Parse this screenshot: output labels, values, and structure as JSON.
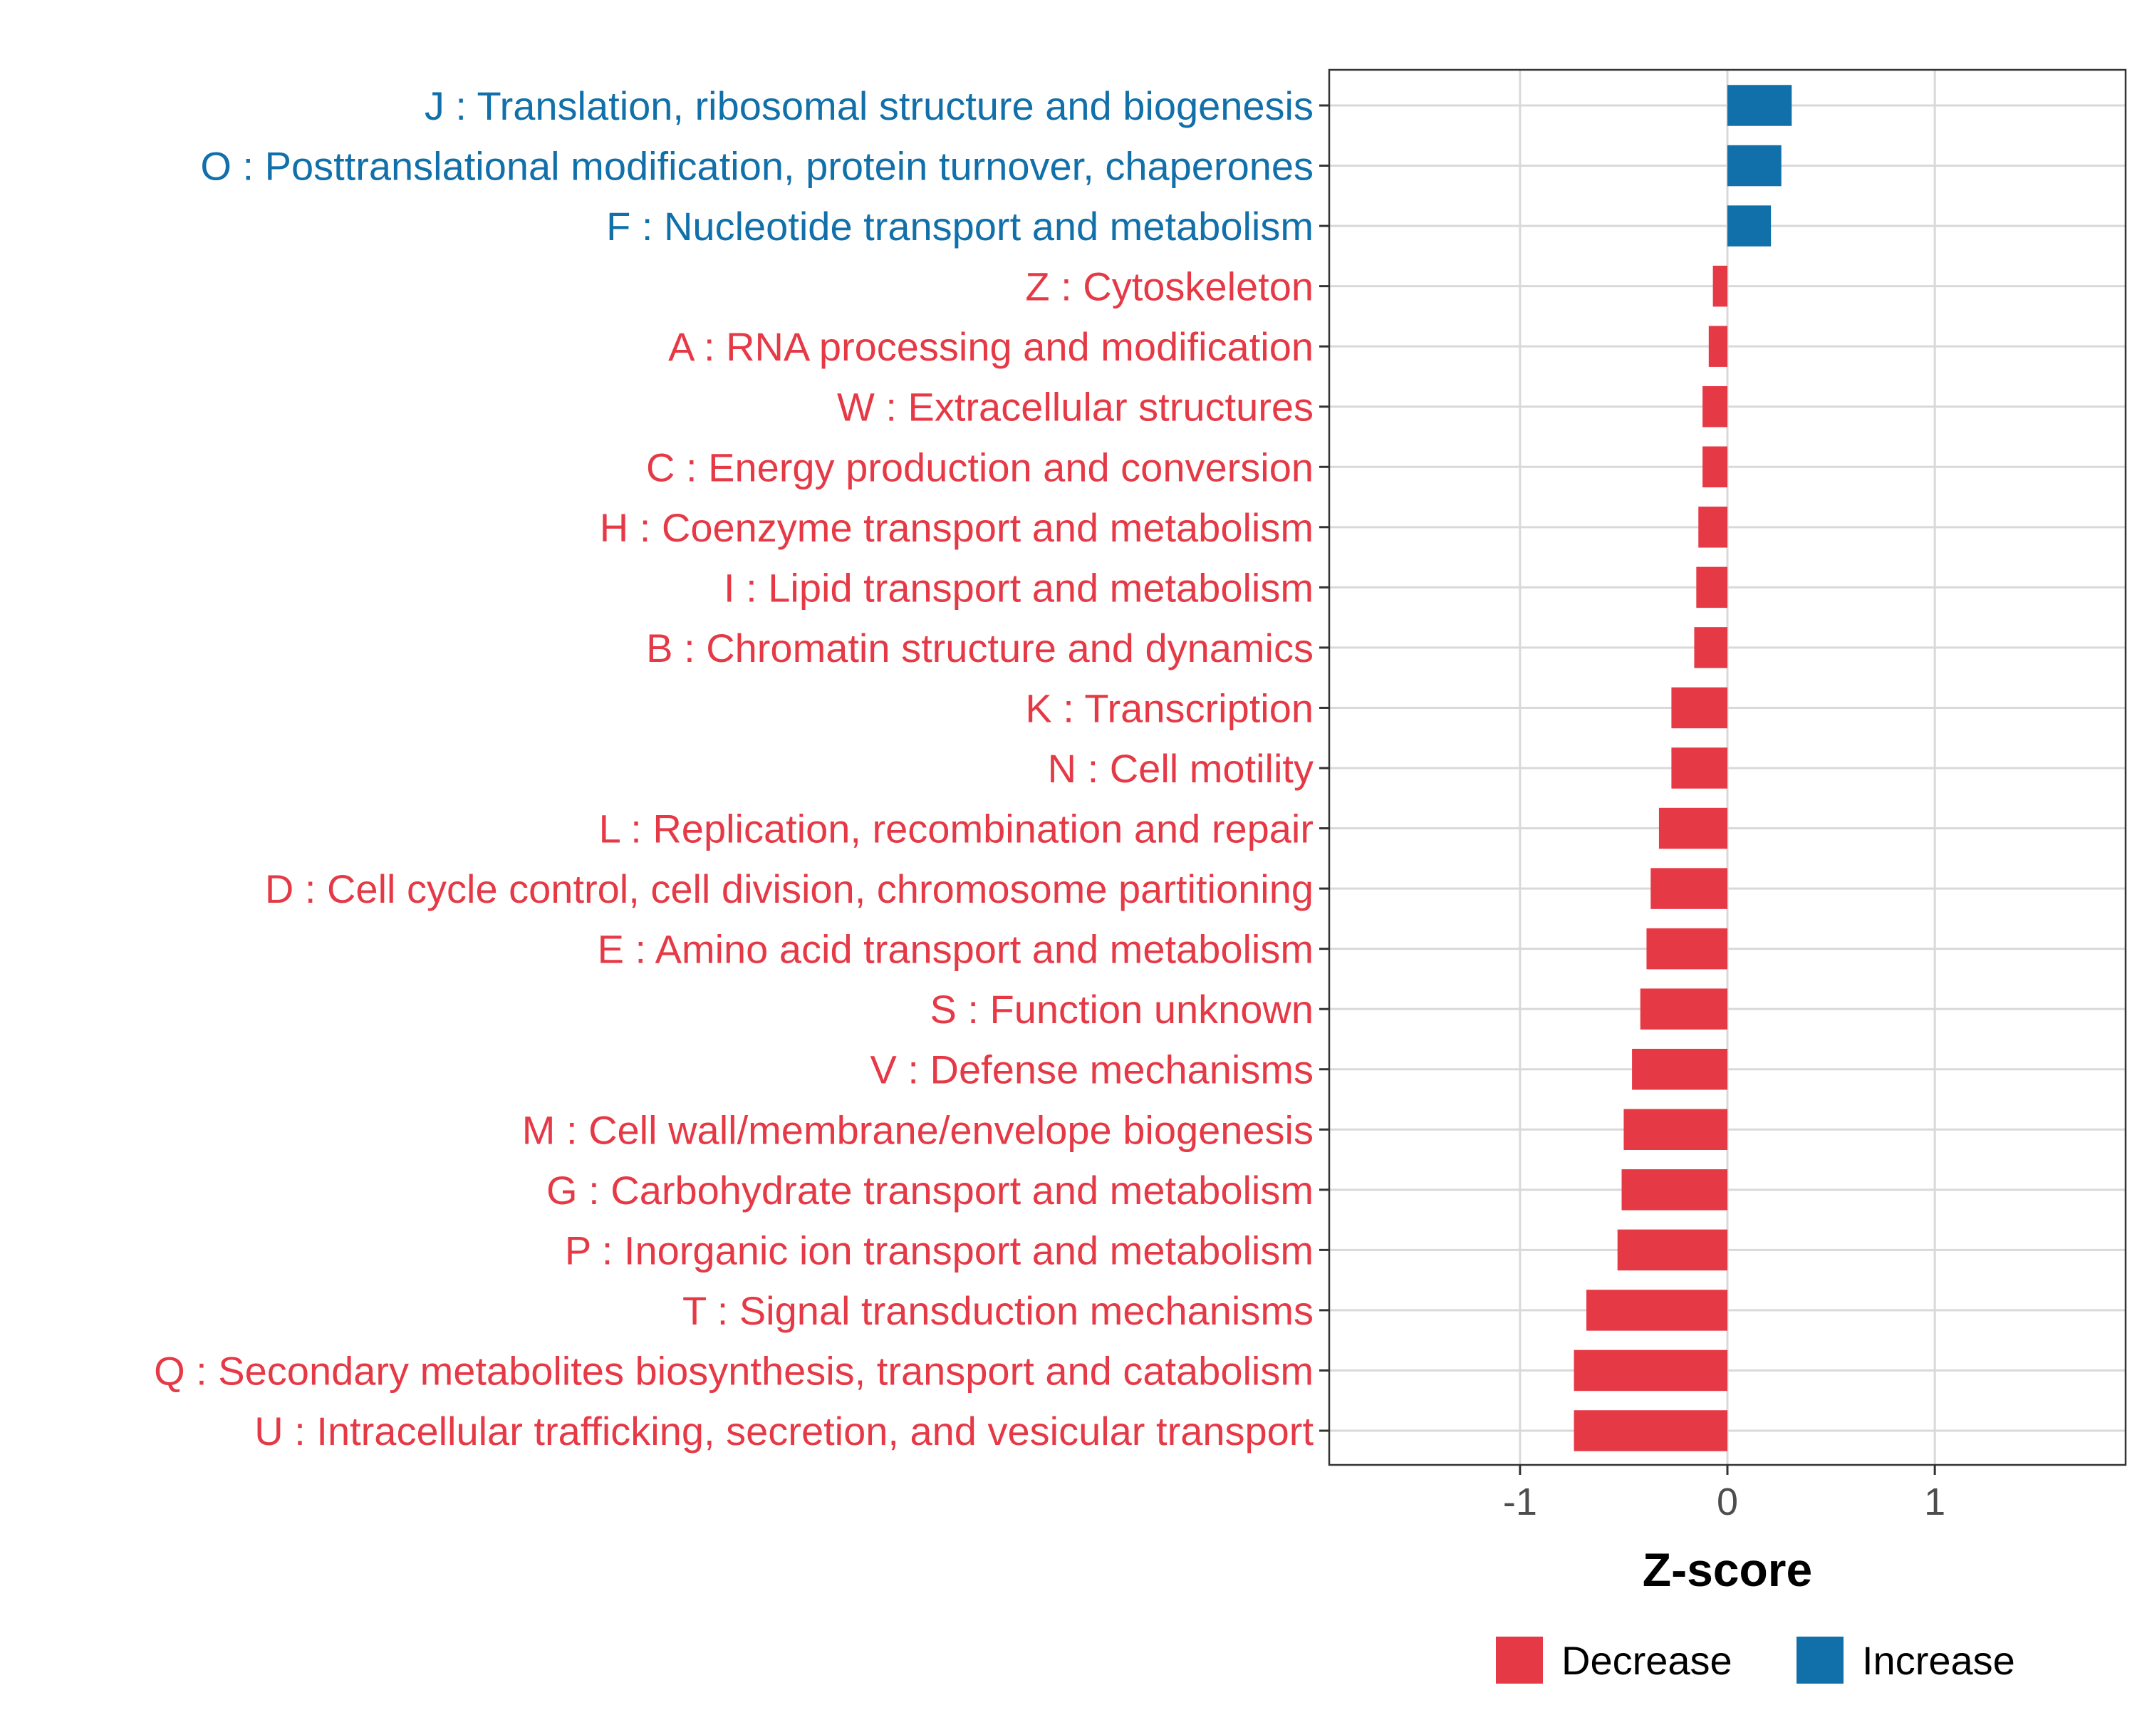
{
  "chart_data": {
    "type": "bar",
    "orientation": "horizontal",
    "title": "",
    "xlabel": "Z-score",
    "ylabel": "",
    "xlim": [
      -1.92,
      1.92
    ],
    "xticks": [
      -1,
      0,
      1
    ],
    "xtick_labels": [
      "-1",
      "0",
      "1"
    ],
    "grid": true,
    "legend_position": "bottom",
    "colors": {
      "Decrease": "#e63946",
      "Increase": "#1170aa"
    },
    "legend": [
      {
        "label": "Decrease",
        "color": "#e63946"
      },
      {
        "label": "Increase",
        "color": "#1170aa"
      }
    ],
    "categories": [
      "J : Translation, ribosomal structure and biogenesis",
      "O : Posttranslational modification, protein turnover, chaperones",
      "F : Nucleotide transport and metabolism",
      "Z : Cytoskeleton",
      "A : RNA processing and modification",
      "W : Extracellular structures",
      "C : Energy production and conversion",
      "H : Coenzyme transport and metabolism",
      "I : Lipid transport and metabolism",
      "B : Chromatin structure and dynamics",
      "K : Transcription",
      "N : Cell motility",
      "L : Replication, recombination and repair",
      "D : Cell cycle control, cell division, chromosome partitioning",
      "E : Amino acid transport and metabolism",
      "S : Function unknown",
      "V : Defense mechanisms",
      "M : Cell wall/membrane/envelope biogenesis",
      "G : Carbohydrate transport and metabolism",
      "P : Inorganic ion transport and metabolism",
      "T : Signal transduction mechanisms",
      "Q : Secondary metabolites biosynthesis, transport and catabolism",
      "U : Intracellular trafficking, secretion, and vesicular transport"
    ],
    "values": [
      0.31,
      0.26,
      0.21,
      -0.07,
      -0.09,
      -0.12,
      -0.12,
      -0.14,
      -0.15,
      -0.16,
      -0.27,
      -0.27,
      -0.33,
      -0.37,
      -0.39,
      -0.42,
      -0.46,
      -0.5,
      -0.51,
      -0.53,
      -0.68,
      -0.74,
      -0.74
    ],
    "groups": [
      "Increase",
      "Increase",
      "Increase",
      "Decrease",
      "Decrease",
      "Decrease",
      "Decrease",
      "Decrease",
      "Decrease",
      "Decrease",
      "Decrease",
      "Decrease",
      "Decrease",
      "Decrease",
      "Decrease",
      "Decrease",
      "Decrease",
      "Decrease",
      "Decrease",
      "Decrease",
      "Decrease",
      "Decrease",
      "Decrease"
    ]
  }
}
